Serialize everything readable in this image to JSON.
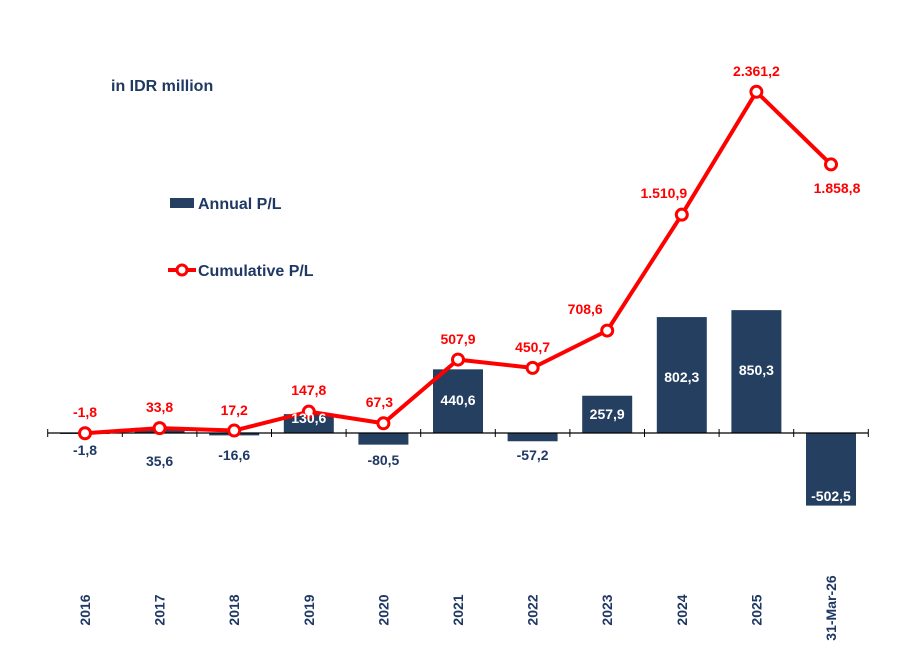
{
  "chart_data": {
    "type": "bar+line",
    "unit_note": "in IDR million",
    "categories": [
      "2016",
      "2017",
      "2018",
      "2019",
      "2020",
      "2021",
      "2022",
      "2023",
      "2024",
      "2025",
      "31-Mar-26"
    ],
    "series": [
      {
        "name": "Annual P/L",
        "type": "bar",
        "color": "#243F60",
        "values": [
          -1.8,
          35.6,
          -16.6,
          130.6,
          -80.5,
          440.6,
          -57.2,
          257.9,
          802.3,
          850.3,
          -502.5
        ],
        "labels": [
          "-1,8",
          "35,6",
          "-16,6",
          "130,6",
          "-80,5",
          "440,6",
          "-57,2",
          "257,9",
          "802,3",
          "850,3",
          "-502,5"
        ]
      },
      {
        "name": "Cumulative P/L",
        "type": "line",
        "color": "#FF0000",
        "values": [
          -1.8,
          33.8,
          17.2,
          147.8,
          67.3,
          507.9,
          450.7,
          708.6,
          1510.9,
          2361.2,
          1858.8
        ],
        "labels": [
          "-1,8",
          "33,8",
          "17,2",
          "147,8",
          "67,3",
          "507,9",
          "450,7",
          "708,6",
          "1.510,9",
          "2.361,2",
          "1.858,8"
        ]
      }
    ],
    "legend": {
      "placement": "upper-left",
      "entries": [
        "Annual P/L",
        "Cumulative P/L"
      ]
    },
    "grid": false
  }
}
